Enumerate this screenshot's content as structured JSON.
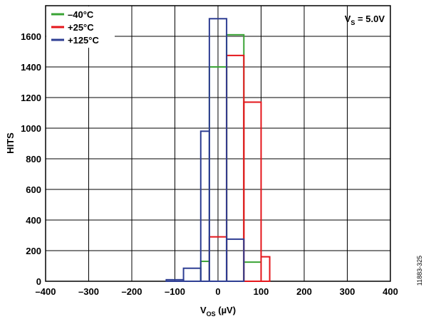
{
  "chart_data": {
    "type": "histogram",
    "xlabel": {
      "main": "V",
      "sub": "OS",
      "unit": " (µV)"
    },
    "ylabel": "HITS",
    "xlim": [
      -400,
      400
    ],
    "ylim": [
      0,
      1800
    ],
    "xticks": [
      -400,
      -300,
      -200,
      -100,
      0,
      100,
      200,
      300,
      400
    ],
    "yticks": [
      0,
      200,
      400,
      600,
      800,
      1000,
      1200,
      1400,
      1600
    ],
    "xtick_labels": [
      "–400",
      "–300",
      "–200",
      "–100",
      "0",
      "100",
      "200",
      "300",
      "400"
    ],
    "ytick_labels": [
      "0",
      "200",
      "400",
      "600",
      "800",
      "1000",
      "1200",
      "1400",
      "1600"
    ],
    "grid": true,
    "legend_position": "top-left",
    "annotation": {
      "main": "V",
      "sub": "S",
      "rest": " = 5.0V"
    },
    "figure_id": "11883-325",
    "series": [
      {
        "name": "–40°C",
        "color": "#3aa335",
        "edges": [
          -80,
          -40,
          -20,
          20,
          60,
          100
        ],
        "values": [
          0,
          130,
          1400,
          1610,
          125
        ]
      },
      {
        "name": "+25°C",
        "color": "#e4161b",
        "edges": [
          -20,
          20,
          60,
          100,
          120
        ],
        "values": [
          290,
          1475,
          1170,
          160
        ]
      },
      {
        "name": "+125°C",
        "color": "#2e3e93",
        "edges": [
          -120,
          -80,
          -40,
          -20,
          20,
          60
        ],
        "values": [
          10,
          85,
          980,
          1715,
          275
        ]
      }
    ]
  }
}
